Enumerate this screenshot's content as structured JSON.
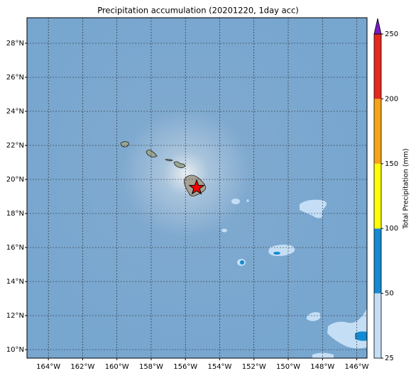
{
  "map": {
    "title": "Precipitation accumulation (20201220, 1day acc)",
    "xlim": [
      -165.25,
      -145.4
    ],
    "ylim": [
      9.5,
      29.5
    ],
    "xticks": [
      {
        "value": -164,
        "label": "164°W"
      },
      {
        "value": -162,
        "label": "162°W"
      },
      {
        "value": -160,
        "label": "160°W"
      },
      {
        "value": -158,
        "label": "158°W"
      },
      {
        "value": -156,
        "label": "156°W"
      },
      {
        "value": -154,
        "label": "154°W"
      },
      {
        "value": -152,
        "label": "152°W"
      },
      {
        "value": -150,
        "label": "150°W"
      },
      {
        "value": -148,
        "label": "148°W"
      },
      {
        "value": -146,
        "label": "146°W"
      }
    ],
    "yticks": [
      {
        "value": 10,
        "label": "10°N"
      },
      {
        "value": 12,
        "label": "12°N"
      },
      {
        "value": 14,
        "label": "14°N"
      },
      {
        "value": 16,
        "label": "16°N"
      },
      {
        "value": 18,
        "label": "18°N"
      },
      {
        "value": 20,
        "label": "20°N"
      },
      {
        "value": 22,
        "label": "22°N"
      },
      {
        "value": 24,
        "label": "24°N"
      },
      {
        "value": 26,
        "label": "26°N"
      },
      {
        "value": 28,
        "label": "28°N"
      }
    ],
    "grid": true,
    "colorbar": {
      "label": "Total Precipitation (mm)",
      "ticks": [
        25,
        50,
        100,
        150,
        200,
        250
      ],
      "colors": [
        "#c4def6",
        "#1589d1",
        "#ffff00",
        "#f6a318",
        "#e5281e"
      ],
      "extend_color": "#7b19c6"
    }
  }
}
